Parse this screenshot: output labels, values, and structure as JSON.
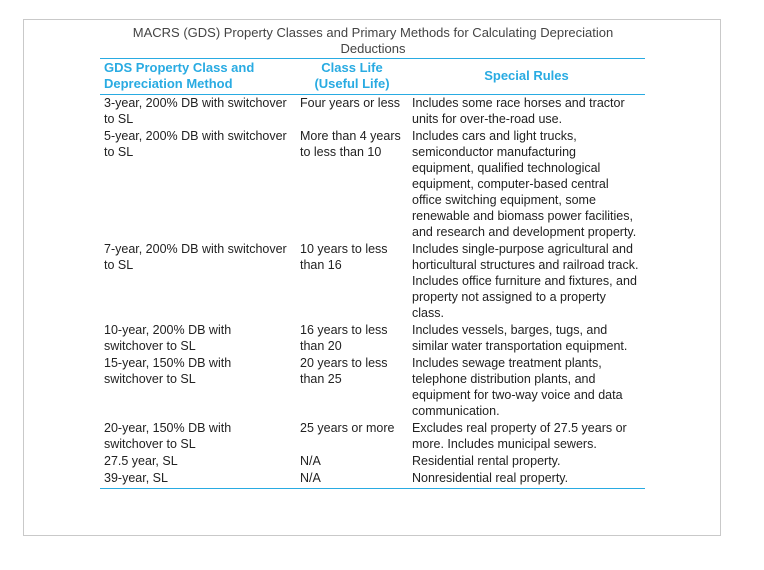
{
  "caption": "MACRS (GDS) Property Classes and Primary Methods for Calculating Depreciation Deductions",
  "table": {
    "headers": [
      "GDS Property Class and Depreciation Method",
      "Class Life (Useful Life)",
      "Special Rules"
    ],
    "rows": [
      {
        "property_class": "3-year, 200% DB with switchover to SL",
        "class_life": "Four years or less",
        "special_rules": "Includes some race horses and tractor units for over-the-road use."
      },
      {
        "property_class": "5-year, 200% DB with switchover to SL",
        "class_life": "More than 4 years to less than 10",
        "special_rules": "Includes cars and light trucks, semiconductor manufacturing equipment, qualified technological equipment, computer-based central office switching equipment, some renewable and biomass power facilities, and research and development property."
      },
      {
        "property_class": "7-year, 200% DB with switchover to SL",
        "class_life": "10 years to less than 16",
        "special_rules": "Includes single-purpose agricultural and horticultural structures and railroad track. Includes office furniture and fixtures, and property not assigned to a property class."
      },
      {
        "property_class": "10-year, 200% DB with switchover to SL",
        "class_life": "16 years to less than 20",
        "special_rules": "Includes vessels, barges, tugs, and similar water transportation equipment."
      },
      {
        "property_class": "15-year, 150% DB with switchover to SL",
        "class_life": "20 years to less than 25",
        "special_rules": "Includes sewage treatment plants, telephone distribution plants, and equipment for two-way voice and data communication."
      },
      {
        "property_class": "20-year, 150% DB with switchover to SL",
        "class_life": "25 years or more",
        "special_rules": "Excludes real property of 27.5 years or more. Includes municipal sewers."
      },
      {
        "property_class": "27.5 year, SL",
        "class_life": "N/A",
        "special_rules": "Residential rental property."
      },
      {
        "property_class": "39-year, SL",
        "class_life": "N/A",
        "special_rules": "Nonresidential real property."
      }
    ]
  },
  "colors": {
    "header_text": "#29abe2",
    "rule_lines": "#29abe2",
    "body_text": "#222222",
    "frame_border": "#c9c9c9"
  }
}
